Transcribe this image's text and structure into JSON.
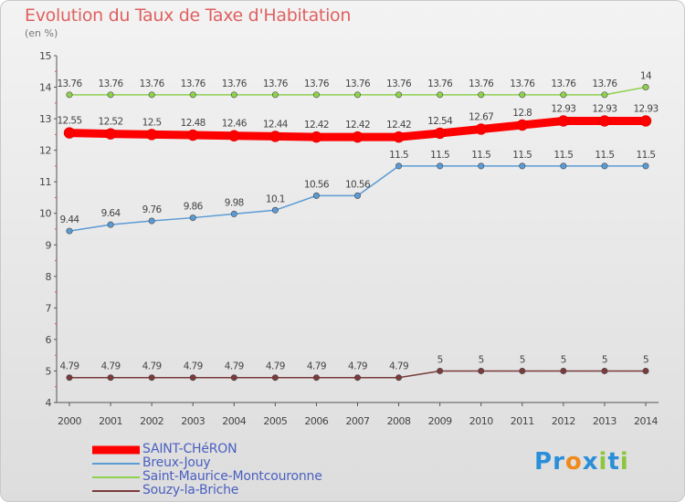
{
  "header": {
    "title": "Evolution du Taux de Taxe d'Habitation",
    "unit": "(en %)"
  },
  "logo": {
    "text": "Proxiti",
    "letters": [
      {
        "ch": "P",
        "color": "#2a8fd8"
      },
      {
        "ch": "r",
        "color": "#2a8fd8"
      },
      {
        "ch": "o",
        "color": "#f08a1c"
      },
      {
        "ch": "x",
        "color": "#2a8fd8"
      },
      {
        "ch": "i",
        "color": "#8cc63f"
      },
      {
        "ch": "t",
        "color": "#2a8fd8"
      },
      {
        "ch": "i",
        "color": "#8cc63f"
      }
    ]
  },
  "chart_data": {
    "type": "line",
    "title": "Evolution du Taux de Taxe d'Habitation",
    "ylabel": "(en %)",
    "xlabel": "",
    "ylim": [
      4,
      15
    ],
    "yticks": [
      4,
      5,
      6,
      7,
      8,
      9,
      10,
      11,
      12,
      13,
      14,
      15
    ],
    "x": [
      "2000",
      "2001",
      "2002",
      "2003",
      "2004",
      "2005",
      "2006",
      "2007",
      "2008",
      "2009",
      "2010",
      "2011",
      "2012",
      "2013",
      "2014"
    ],
    "grid": false,
    "legend_position": "bottom-left",
    "series": [
      {
        "name": "SAINT-CHéRON",
        "color": "#ff0000",
        "emphasis": true,
        "values": [
          12.55,
          12.52,
          12.5,
          12.48,
          12.46,
          12.44,
          12.42,
          12.42,
          12.42,
          12.54,
          12.67,
          12.8,
          12.93,
          12.93,
          12.93
        ],
        "labels": [
          "12.55",
          "12.52",
          "12.5",
          "12.48",
          "12.46",
          "12.44",
          "12.42",
          "12.42",
          "12.42",
          "12.54",
          "12.67",
          "12.8",
          "12.93",
          "12.93",
          "12.93"
        ]
      },
      {
        "name": "Breux-Jouy",
        "color": "#5b9bd5",
        "emphasis": false,
        "values": [
          9.44,
          9.64,
          9.76,
          9.86,
          9.98,
          10.1,
          10.56,
          10.56,
          11.5,
          11.5,
          11.5,
          11.5,
          11.5,
          11.5,
          11.5
        ],
        "labels": [
          "9.44",
          "9.64",
          "9.76",
          "9.86",
          "9.98",
          "10.1",
          "10.56",
          "10.56",
          "11.5",
          "11.5",
          "11.5",
          "11.5",
          "11.5",
          "11.5",
          "11.5"
        ]
      },
      {
        "name": "Saint-Maurice-Montcouronne",
        "color": "#8fd14f",
        "emphasis": false,
        "values": [
          13.76,
          13.76,
          13.76,
          13.76,
          13.76,
          13.76,
          13.76,
          13.76,
          13.76,
          13.76,
          13.76,
          13.76,
          13.76,
          13.76,
          14
        ],
        "labels": [
          "13.76",
          "13.76",
          "13.76",
          "13.76",
          "13.76",
          "13.76",
          "13.76",
          "13.76",
          "13.76",
          "13.76",
          "13.76",
          "13.76",
          "13.76",
          "13.76",
          "14"
        ]
      },
      {
        "name": "Souzy-la-Briche",
        "color": "#7a3b3b",
        "emphasis": false,
        "values": [
          4.79,
          4.79,
          4.79,
          4.79,
          4.79,
          4.79,
          4.79,
          4.79,
          4.79,
          5,
          5,
          5,
          5,
          5,
          5
        ],
        "labels": [
          "4.79",
          "4.79",
          "4.79",
          "4.79",
          "4.79",
          "4.79",
          "4.79",
          "4.79",
          "4.79",
          "5",
          "5",
          "5",
          "5",
          "5",
          "5"
        ]
      }
    ]
  }
}
